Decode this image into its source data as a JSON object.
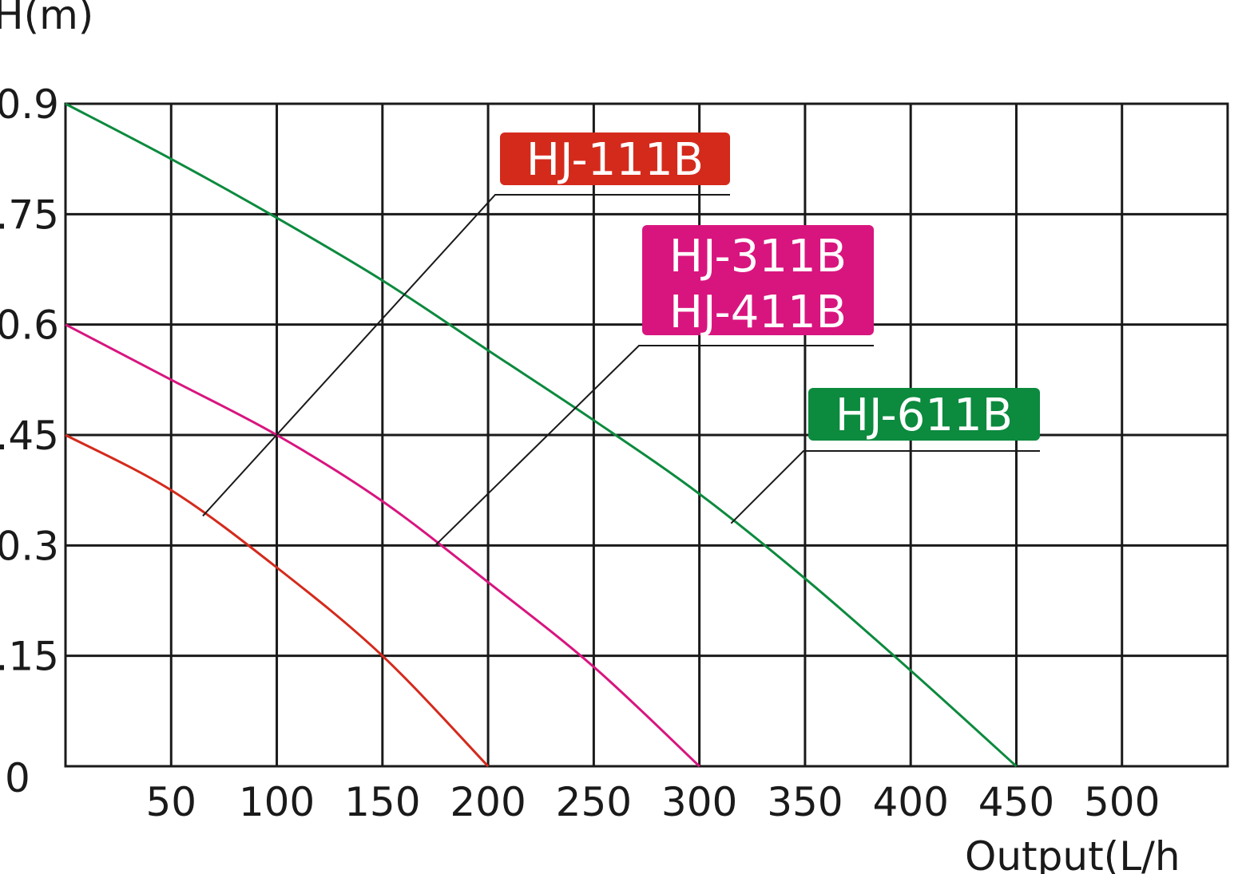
{
  "chart_data": {
    "type": "line",
    "ylabel": "H(m)",
    "xlabel": "Output(L/h",
    "xlim": [
      0,
      550
    ],
    "ylim": [
      0,
      0.9
    ],
    "x_ticks": [
      50,
      100,
      150,
      200,
      250,
      300,
      350,
      400,
      450,
      500
    ],
    "x_tick_labels": [
      "50",
      "100",
      "150",
      "200",
      "250",
      "300",
      "350",
      "400",
      "450",
      "500"
    ],
    "y_ticks": [
      0,
      0.15,
      0.3,
      0.45,
      0.6,
      0.75,
      0.9
    ],
    "y_tick_labels": [
      "0",
      ".15",
      "0.3",
      ".45",
      "0.6",
      ".75",
      "0.9"
    ],
    "grid": true,
    "series": [
      {
        "name": "HJ-111B",
        "color": "#d42a1c",
        "points": [
          [
            0,
            0.45
          ],
          [
            50,
            0.375
          ],
          [
            100,
            0.27
          ],
          [
            150,
            0.15
          ],
          [
            200,
            0.0
          ]
        ]
      },
      {
        "name": "HJ-311B / HJ-411B",
        "color": "#d8157f",
        "points": [
          [
            0,
            0.6
          ],
          [
            50,
            0.525
          ],
          [
            100,
            0.45
          ],
          [
            150,
            0.36
          ],
          [
            200,
            0.25
          ],
          [
            250,
            0.135
          ],
          [
            300,
            0.0
          ]
        ]
      },
      {
        "name": "HJ-611B",
        "color": "#0c8a3e",
        "points": [
          [
            0,
            0.9
          ],
          [
            50,
            0.825
          ],
          [
            100,
            0.745
          ],
          [
            150,
            0.66
          ],
          [
            200,
            0.565
          ],
          [
            250,
            0.47
          ],
          [
            300,
            0.37
          ],
          [
            350,
            0.255
          ],
          [
            400,
            0.13
          ],
          [
            450,
            0.0
          ]
        ]
      }
    ],
    "annotations": [
      {
        "lines": [
          "HJ-111B"
        ],
        "color": "#d42a1c",
        "target": [
          65,
          0.34
        ]
      },
      {
        "lines": [
          "HJ-311B",
          "HJ-411B"
        ],
        "color": "#d8157f",
        "target": [
          175,
          0.3
        ]
      },
      {
        "lines": [
          "HJ-611B"
        ],
        "color": "#0c8a3e",
        "target": [
          315,
          0.33
        ]
      }
    ]
  }
}
